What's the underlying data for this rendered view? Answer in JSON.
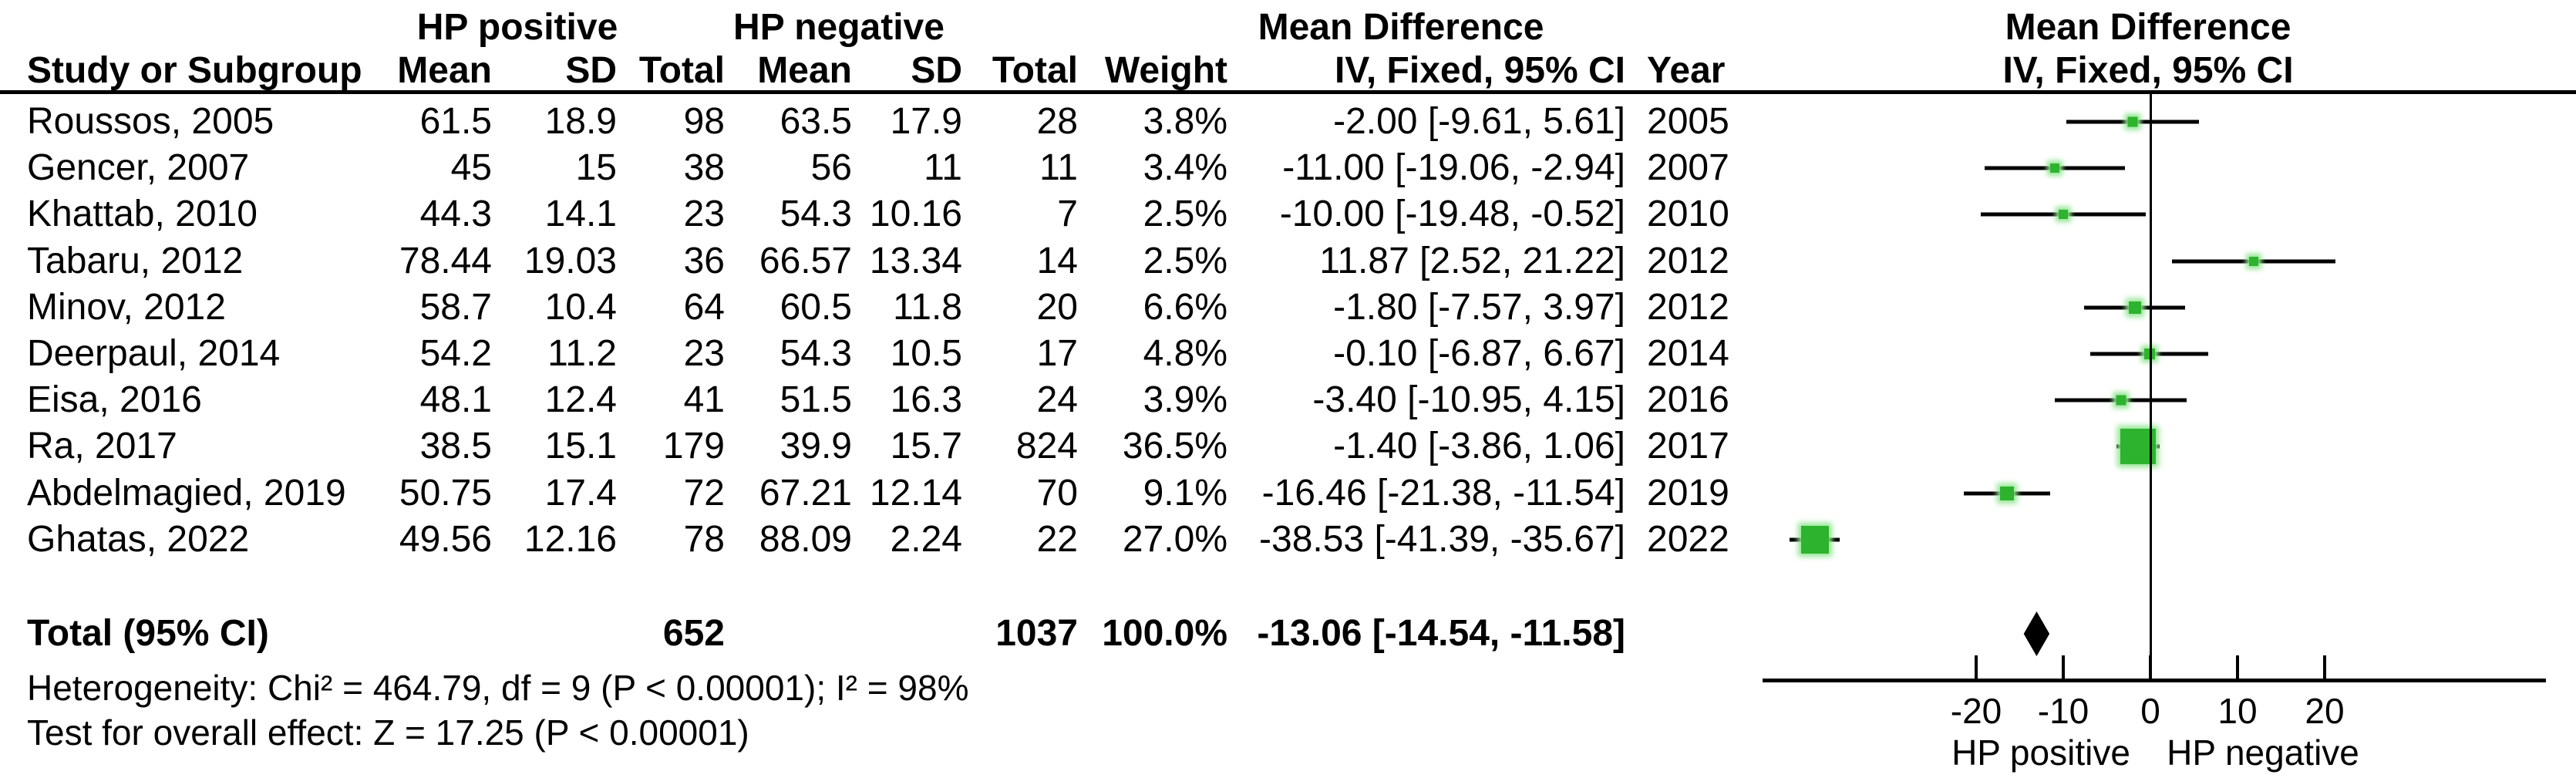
{
  "header": {
    "study_col": "Study or Subgroup",
    "group1": "HP positive",
    "group2": "HP negative",
    "md_header_left": "Mean Difference",
    "md_subheader_left": "IV, Fixed, 95% CI",
    "year_col": "Year",
    "md_header_right": "Mean Difference",
    "md_subheader_right": "IV, Fixed, 95% CI",
    "sub_cols": [
      "Mean",
      "SD",
      "Total",
      "Mean",
      "SD",
      "Total",
      "Weight"
    ]
  },
  "chart_data": {
    "type": "forest",
    "effect_measure": "Mean Difference IV, Fixed, 95% CI",
    "studies": [
      {
        "name": "Roussos, 2005",
        "mean1": "61.5",
        "sd1": "18.9",
        "total1": "98",
        "mean2": "63.5",
        "sd2": "17.9",
        "total2": "28",
        "weight": "3.8%",
        "weight_pct": 3.8,
        "ci_text": "-2.00 [-9.61, 5.61]",
        "year": "2005",
        "md": -2.0,
        "lo": -9.61,
        "hi": 5.61
      },
      {
        "name": "Gencer, 2007",
        "mean1": "45",
        "sd1": "15",
        "total1": "38",
        "mean2": "56",
        "sd2": "11",
        "total2": "11",
        "weight": "3.4%",
        "weight_pct": 3.4,
        "ci_text": "-11.00 [-19.06, -2.94]",
        "year": "2007",
        "md": -11.0,
        "lo": -19.06,
        "hi": -2.94
      },
      {
        "name": "Khattab, 2010",
        "mean1": "44.3",
        "sd1": "14.1",
        "total1": "23",
        "mean2": "54.3",
        "sd2": "10.16",
        "total2": "7",
        "weight": "2.5%",
        "weight_pct": 2.5,
        "ci_text": "-10.00 [-19.48, -0.52]",
        "year": "2010",
        "md": -10.0,
        "lo": -19.48,
        "hi": -0.52
      },
      {
        "name": "Tabaru, 2012",
        "mean1": "78.44",
        "sd1": "19.03",
        "total1": "36",
        "mean2": "66.57",
        "sd2": "13.34",
        "total2": "14",
        "weight": "2.5%",
        "weight_pct": 2.5,
        "ci_text": "11.87 [2.52, 21.22]",
        "year": "2012",
        "md": 11.87,
        "lo": 2.52,
        "hi": 21.22
      },
      {
        "name": "Minov, 2012",
        "mean1": "58.7",
        "sd1": "10.4",
        "total1": "64",
        "mean2": "60.5",
        "sd2": "11.8",
        "total2": "20",
        "weight": "6.6%",
        "weight_pct": 6.6,
        "ci_text": "-1.80 [-7.57, 3.97]",
        "year": "2012",
        "md": -1.8,
        "lo": -7.57,
        "hi": 3.97
      },
      {
        "name": "Deerpaul, 2014",
        "mean1": "54.2",
        "sd1": "11.2",
        "total1": "23",
        "mean2": "54.3",
        "sd2": "10.5",
        "total2": "17",
        "weight": "4.8%",
        "weight_pct": 4.8,
        "ci_text": "-0.10 [-6.87, 6.67]",
        "year": "2014",
        "md": -0.1,
        "lo": -6.87,
        "hi": 6.67
      },
      {
        "name": "Eisa, 2016",
        "mean1": "48.1",
        "sd1": "12.4",
        "total1": "41",
        "mean2": "51.5",
        "sd2": "16.3",
        "total2": "24",
        "weight": "3.9%",
        "weight_pct": 3.9,
        "ci_text": "-3.40 [-10.95, 4.15]",
        "year": "2016",
        "md": -3.4,
        "lo": -10.95,
        "hi": 4.15
      },
      {
        "name": "Ra, 2017",
        "mean1": "38.5",
        "sd1": "15.1",
        "total1": "179",
        "mean2": "39.9",
        "sd2": "15.7",
        "total2": "824",
        "weight": "36.5%",
        "weight_pct": 36.5,
        "ci_text": "-1.40 [-3.86, 1.06]",
        "year": "2017",
        "md": -1.4,
        "lo": -3.86,
        "hi": 1.06
      },
      {
        "name": "Abdelmagied, 2019",
        "mean1": "50.75",
        "sd1": "17.4",
        "total1": "72",
        "mean2": "67.21",
        "sd2": "12.14",
        "total2": "70",
        "weight": "9.1%",
        "weight_pct": 9.1,
        "ci_text": "-16.46 [-21.38, -11.54]",
        "year": "2019",
        "md": -16.46,
        "lo": -21.38,
        "hi": -11.54
      },
      {
        "name": "Ghatas, 2022",
        "mean1": "49.56",
        "sd1": "12.16",
        "total1": "78",
        "mean2": "88.09",
        "sd2": "2.24",
        "total2": "22",
        "weight": "27.0%",
        "weight_pct": 27.0,
        "ci_text": "-38.53 [-41.39, -35.67]",
        "year": "2022",
        "md": -38.53,
        "lo": -41.39,
        "hi": -35.67
      }
    ],
    "total": {
      "label": "Total (95% CI)",
      "total1": "652",
      "total2": "1037",
      "weight": "100.0%",
      "ci_text": "-13.06 [-14.54, -11.58]",
      "md": -13.06,
      "lo": -14.54,
      "hi": -11.58
    },
    "heterogeneity": "Heterogeneity: Chi² = 464.79, df = 9 (P < 0.00001); I² = 98%",
    "overall_effect": "Test for overall effect: Z = 17.25 (P < 0.00001)",
    "axis": {
      "ticks": [
        -20,
        -10,
        0,
        10,
        20
      ],
      "left_label": "HP positive",
      "right_label": "HP negative"
    }
  },
  "colors": {
    "marker": "#2db32d",
    "marker_glow": "#94e594",
    "line": "#000000",
    "diamond": "#000000",
    "text": "#000000",
    "background": "#ffffff"
  }
}
